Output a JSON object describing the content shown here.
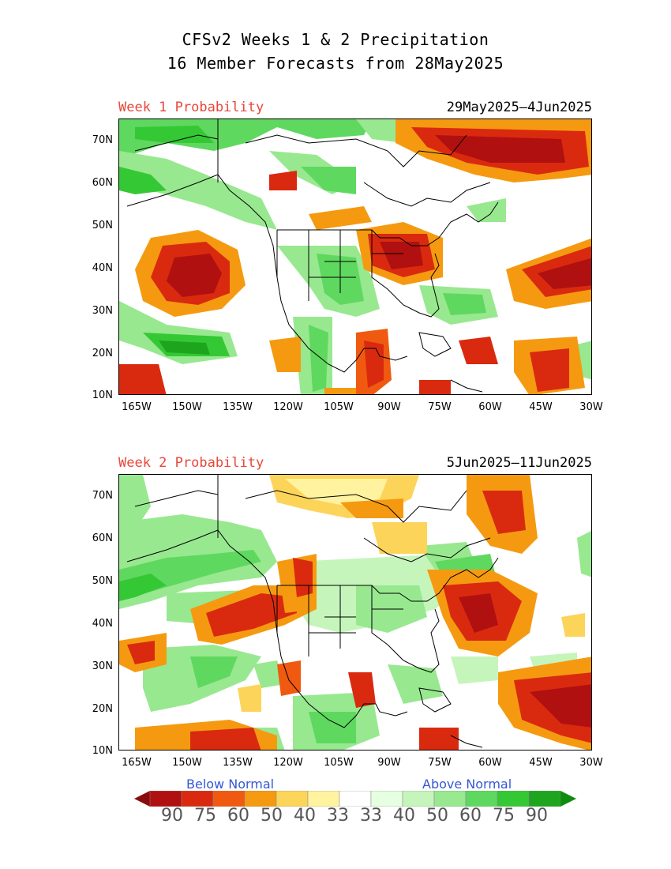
{
  "title": {
    "line1": "CFSv2 Weeks 1 & 2 Precipitation",
    "line2": "16 Member Forecasts from 28May2025"
  },
  "panels": [
    {
      "label": "Week 1 Probability",
      "dates": "29May2025—4Jun2025"
    },
    {
      "label": "Week 2 Probability",
      "dates": "5Jun2025—11Jun2025"
    }
  ],
  "axes": {
    "lat_labels": [
      "70N",
      "60N",
      "50N",
      "40N",
      "30N",
      "20N",
      "10N"
    ],
    "lon_labels": [
      "165W",
      "150W",
      "135W",
      "120W",
      "105W",
      "90W",
      "75W",
      "60W",
      "45W",
      "30W"
    ]
  },
  "legend": {
    "below_label": "Below Normal",
    "above_label": "Above Normal",
    "values": [
      "90",
      "75",
      "60",
      "50",
      "40",
      "33",
      "33",
      "40",
      "50",
      "60",
      "75",
      "90"
    ],
    "colors": {
      "below": [
        "#b01010",
        "#d92a10",
        "#f05a10",
        "#f59a10",
        "#fdd45a",
        "#fff3a0"
      ],
      "neutral": "#ffffff",
      "above": [
        "#e6ffe0",
        "#c6f5bb",
        "#98e890",
        "#5fd85f",
        "#35c835",
        "#1ea51e"
      ]
    }
  },
  "colors": {
    "panel_label": "#e8473a",
    "legend_text": "#3557d4"
  }
}
